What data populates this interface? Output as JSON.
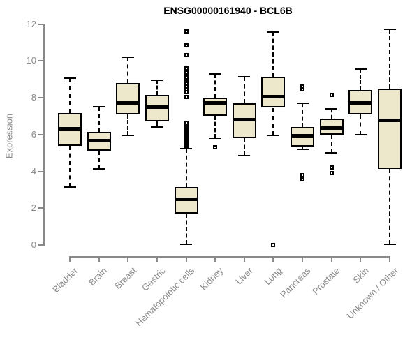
{
  "title": "ENSG00000161940 - BCL6B",
  "chart_data": {
    "type": "boxplot",
    "title": "ENSG00000161940 - BCL6B",
    "xlabel": "",
    "ylabel": "Expression",
    "ylim": [
      0,
      12
    ],
    "yticks": [
      0,
      2,
      4,
      6,
      8,
      10,
      12
    ],
    "grid": false,
    "legend": false,
    "categories": [
      "Bladder",
      "Brain",
      "Breast",
      "Gastric",
      "Hematopoietic cells",
      "Kidney",
      "Liver",
      "Lung",
      "Pancreas",
      "Prostate",
      "Skin",
      "Unknown / Other"
    ],
    "series": [
      {
        "name": "Bladder",
        "whisker_low": 3.15,
        "q1": 5.4,
        "median": 6.3,
        "q3": 7.15,
        "whisker_high": 9.05,
        "outliers": []
      },
      {
        "name": "Brain",
        "whisker_low": 4.15,
        "q1": 5.1,
        "median": 5.65,
        "q3": 6.15,
        "whisker_high": 7.5,
        "outliers": []
      },
      {
        "name": "Breast",
        "whisker_low": 5.95,
        "q1": 7.1,
        "median": 7.7,
        "q3": 8.8,
        "whisker_high": 10.2,
        "outliers": []
      },
      {
        "name": "Gastric",
        "whisker_low": 6.4,
        "q1": 6.7,
        "median": 7.5,
        "q3": 8.15,
        "whisker_high": 8.95,
        "outliers": []
      },
      {
        "name": "Hematopoietic cells",
        "whisker_low": 0.05,
        "q1": 1.7,
        "median": 2.5,
        "q3": 3.15,
        "whisker_high": 5.25,
        "outliers": [
          5.4,
          5.45,
          5.5,
          5.55,
          5.6,
          5.65,
          5.7,
          5.75,
          5.8,
          5.85,
          5.9,
          5.95,
          6.0,
          6.05,
          6.1,
          6.15,
          6.2,
          6.25,
          6.3,
          6.35,
          6.4,
          6.45,
          6.5,
          6.55,
          6.6,
          6.65,
          8.05,
          8.3,
          8.45,
          8.6,
          8.75,
          8.9,
          9.0,
          9.1,
          9.35,
          9.6,
          10.3,
          10.85,
          11.6
        ]
      },
      {
        "name": "Kidney",
        "whisker_low": 5.8,
        "q1": 7.0,
        "median": 7.7,
        "q3": 8.0,
        "whisker_high": 9.3,
        "outliers": [
          5.3
        ]
      },
      {
        "name": "Liver",
        "whisker_low": 4.85,
        "q1": 5.8,
        "median": 6.8,
        "q3": 7.7,
        "whisker_high": 9.15,
        "outliers": []
      },
      {
        "name": "Lung",
        "whisker_low": 5.95,
        "q1": 7.45,
        "median": 8.05,
        "q3": 9.15,
        "whisker_high": 11.55,
        "outliers": [
          0.0
        ]
      },
      {
        "name": "Pancreas",
        "whisker_low": 5.2,
        "q1": 5.35,
        "median": 5.95,
        "q3": 6.4,
        "whisker_high": 7.7,
        "outliers": [
          8.6,
          8.45,
          3.8,
          3.55
        ]
      },
      {
        "name": "Prostate",
        "whisker_low": 5.0,
        "q1": 6.0,
        "median": 6.35,
        "q3": 6.85,
        "whisker_high": 7.4,
        "outliers": [
          8.15,
          4.2,
          3.9
        ]
      },
      {
        "name": "Skin",
        "whisker_low": 6.0,
        "q1": 7.1,
        "median": 7.7,
        "q3": 8.4,
        "whisker_high": 9.55,
        "outliers": []
      },
      {
        "name": "Unknown / Other",
        "whisker_low": 0.05,
        "q1": 4.15,
        "median": 6.75,
        "q3": 8.5,
        "whisker_high": 11.7,
        "outliers": []
      }
    ],
    "colors": {
      "box_fill": "#EDE8CC",
      "box_border": "#000000",
      "median_line": "#000000",
      "whisker": "#000000",
      "outlier": "#000000",
      "axis": "#898989",
      "tick_labels": "#898989",
      "title": "#000000",
      "background": "#FFFFFF"
    }
  }
}
